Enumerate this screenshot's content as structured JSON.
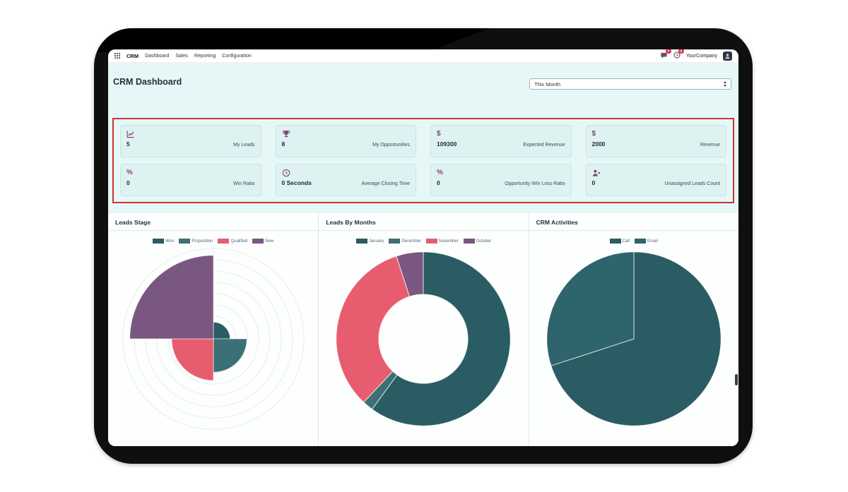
{
  "nav": {
    "app_name": "CRM",
    "menu_items": [
      "Dashboard",
      "Sales",
      "Reporting",
      "Configuration"
    ],
    "messages_badge": "5",
    "activities_badge": "2",
    "company_name": "YourCompany"
  },
  "header": {
    "title": "CRM Dashboard",
    "period_selector": {
      "value": "This Month"
    }
  },
  "kpis": [
    {
      "icon": "line-chart-icon",
      "value": "5",
      "label": "My Leads"
    },
    {
      "icon": "trophy-icon",
      "value": "8",
      "label": "My Opportunities"
    },
    {
      "icon": "dollar-icon",
      "value": "109300",
      "label": "Expected Revenue"
    },
    {
      "icon": "dollar-icon",
      "value": "2000",
      "label": "Revenue"
    },
    {
      "icon": "percent-icon",
      "value": "0",
      "label": "Win Ratio"
    },
    {
      "icon": "clock-icon",
      "value": "0 Seconds",
      "label": "Average Closing Time"
    },
    {
      "icon": "percent-icon",
      "value": "0",
      "label": "Opportunity Win Loss Ratio"
    },
    {
      "icon": "user-x-icon",
      "value": "0",
      "label": "Unassigned Leads Count"
    }
  ],
  "chart_data": [
    {
      "type": "polarArea",
      "title": "Leads Stage",
      "categories": [
        "Won",
        "Proposition",
        "Qualified",
        "New"
      ],
      "values": [
        1,
        2,
        2.5,
        5
      ],
      "colors": [
        "#2a5c63",
        "#3c7077",
        "#e75d6f",
        "#7a5780"
      ],
      "legend_position": "top",
      "grid": true
    },
    {
      "type": "doughnut",
      "title": "Leads By Months",
      "categories": [
        "January",
        "December",
        "November",
        "October"
      ],
      "values": [
        60,
        2,
        33,
        5
      ],
      "colors": [
        "#2a5c63",
        "#3c7077",
        "#e75d6f",
        "#7a5780"
      ],
      "legend_position": "top",
      "grid": false
    },
    {
      "type": "pie",
      "title": "CRM Activities",
      "categories": [
        "Call",
        "Email"
      ],
      "values": [
        70,
        30
      ],
      "colors": [
        "#2a5c63",
        "#2e646c"
      ],
      "legend_position": "top",
      "grid": false
    }
  ],
  "colors": {
    "kpi_highlight_border": "#cf3236",
    "accent_purple": "#7d4577",
    "badge_red": "#e03052",
    "screen_background": "#e6f7f7",
    "teal_dark": "#2a5c63",
    "teal": "#3c7077",
    "pink_red": "#e75d6f",
    "purple": "#7a5780"
  }
}
